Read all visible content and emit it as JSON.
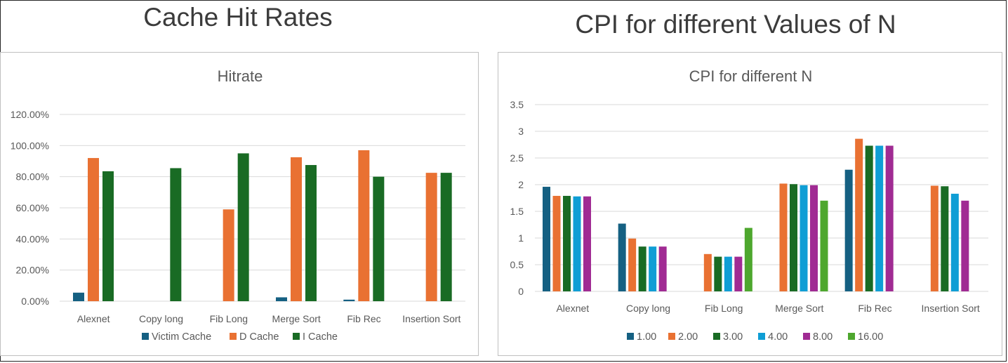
{
  "page": {
    "left_heading": "Cache Hit Rates",
    "right_heading": "CPI for different Values of N"
  },
  "chart_data": [
    {
      "type": "bar",
      "title": "Hitrate",
      "categories": [
        "Alexnet",
        "Copy long",
        "Fib Long",
        "Merge Sort",
        "Fib Rec",
        "Insertion Sort"
      ],
      "ylim": [
        0,
        120
      ],
      "yticks": [
        "0.00%",
        "20.00%",
        "40.00%",
        "60.00%",
        "80.00%",
        "100.00%",
        "120.00%"
      ],
      "grid": true,
      "legend": "bottom",
      "series": [
        {
          "name": "Victim Cache",
          "color": "#156082",
          "values": [
            5.5,
            0,
            0,
            2.5,
            1,
            0
          ]
        },
        {
          "name": "D Cache",
          "color": "#e97132",
          "values": [
            92,
            0,
            59,
            92.5,
            97,
            82.5
          ]
        },
        {
          "name": "I Cache",
          "color": "#196b24",
          "values": [
            83.5,
            85.5,
            95,
            87.5,
            80,
            82.5
          ]
        }
      ]
    },
    {
      "type": "bar",
      "title": "CPI for different N",
      "categories": [
        "Alexnet",
        "Copy long",
        "Fib Long",
        "Merge Sort",
        "Fib Rec",
        "Insertion Sort"
      ],
      "ylim": [
        0,
        3.5
      ],
      "yticks": [
        "0",
        "0.5",
        "1",
        "1.5",
        "2",
        "2.5",
        "3",
        "3.5"
      ],
      "grid": true,
      "legend": "bottom",
      "series": [
        {
          "name": "1.00",
          "color": "#156082",
          "values": [
            1.96,
            1.27,
            0,
            0,
            2.28,
            0
          ]
        },
        {
          "name": "2.00",
          "color": "#e97132",
          "values": [
            1.79,
            0.99,
            0.7,
            2.02,
            2.86,
            1.98
          ]
        },
        {
          "name": "3.00",
          "color": "#196b24",
          "values": [
            1.79,
            0.84,
            0.65,
            2.01,
            2.73,
            1.97
          ]
        },
        {
          "name": "4.00",
          "color": "#0f9ed5",
          "values": [
            1.78,
            0.84,
            0.65,
            1.99,
            2.73,
            1.83
          ]
        },
        {
          "name": "8.00",
          "color": "#a02b93",
          "values": [
            1.78,
            0.84,
            0.65,
            1.99,
            2.73,
            1.7
          ]
        },
        {
          "name": "16.00",
          "color": "#4ea72e",
          "values": [
            0,
            0,
            1.19,
            1.7,
            0,
            0
          ]
        }
      ]
    }
  ]
}
